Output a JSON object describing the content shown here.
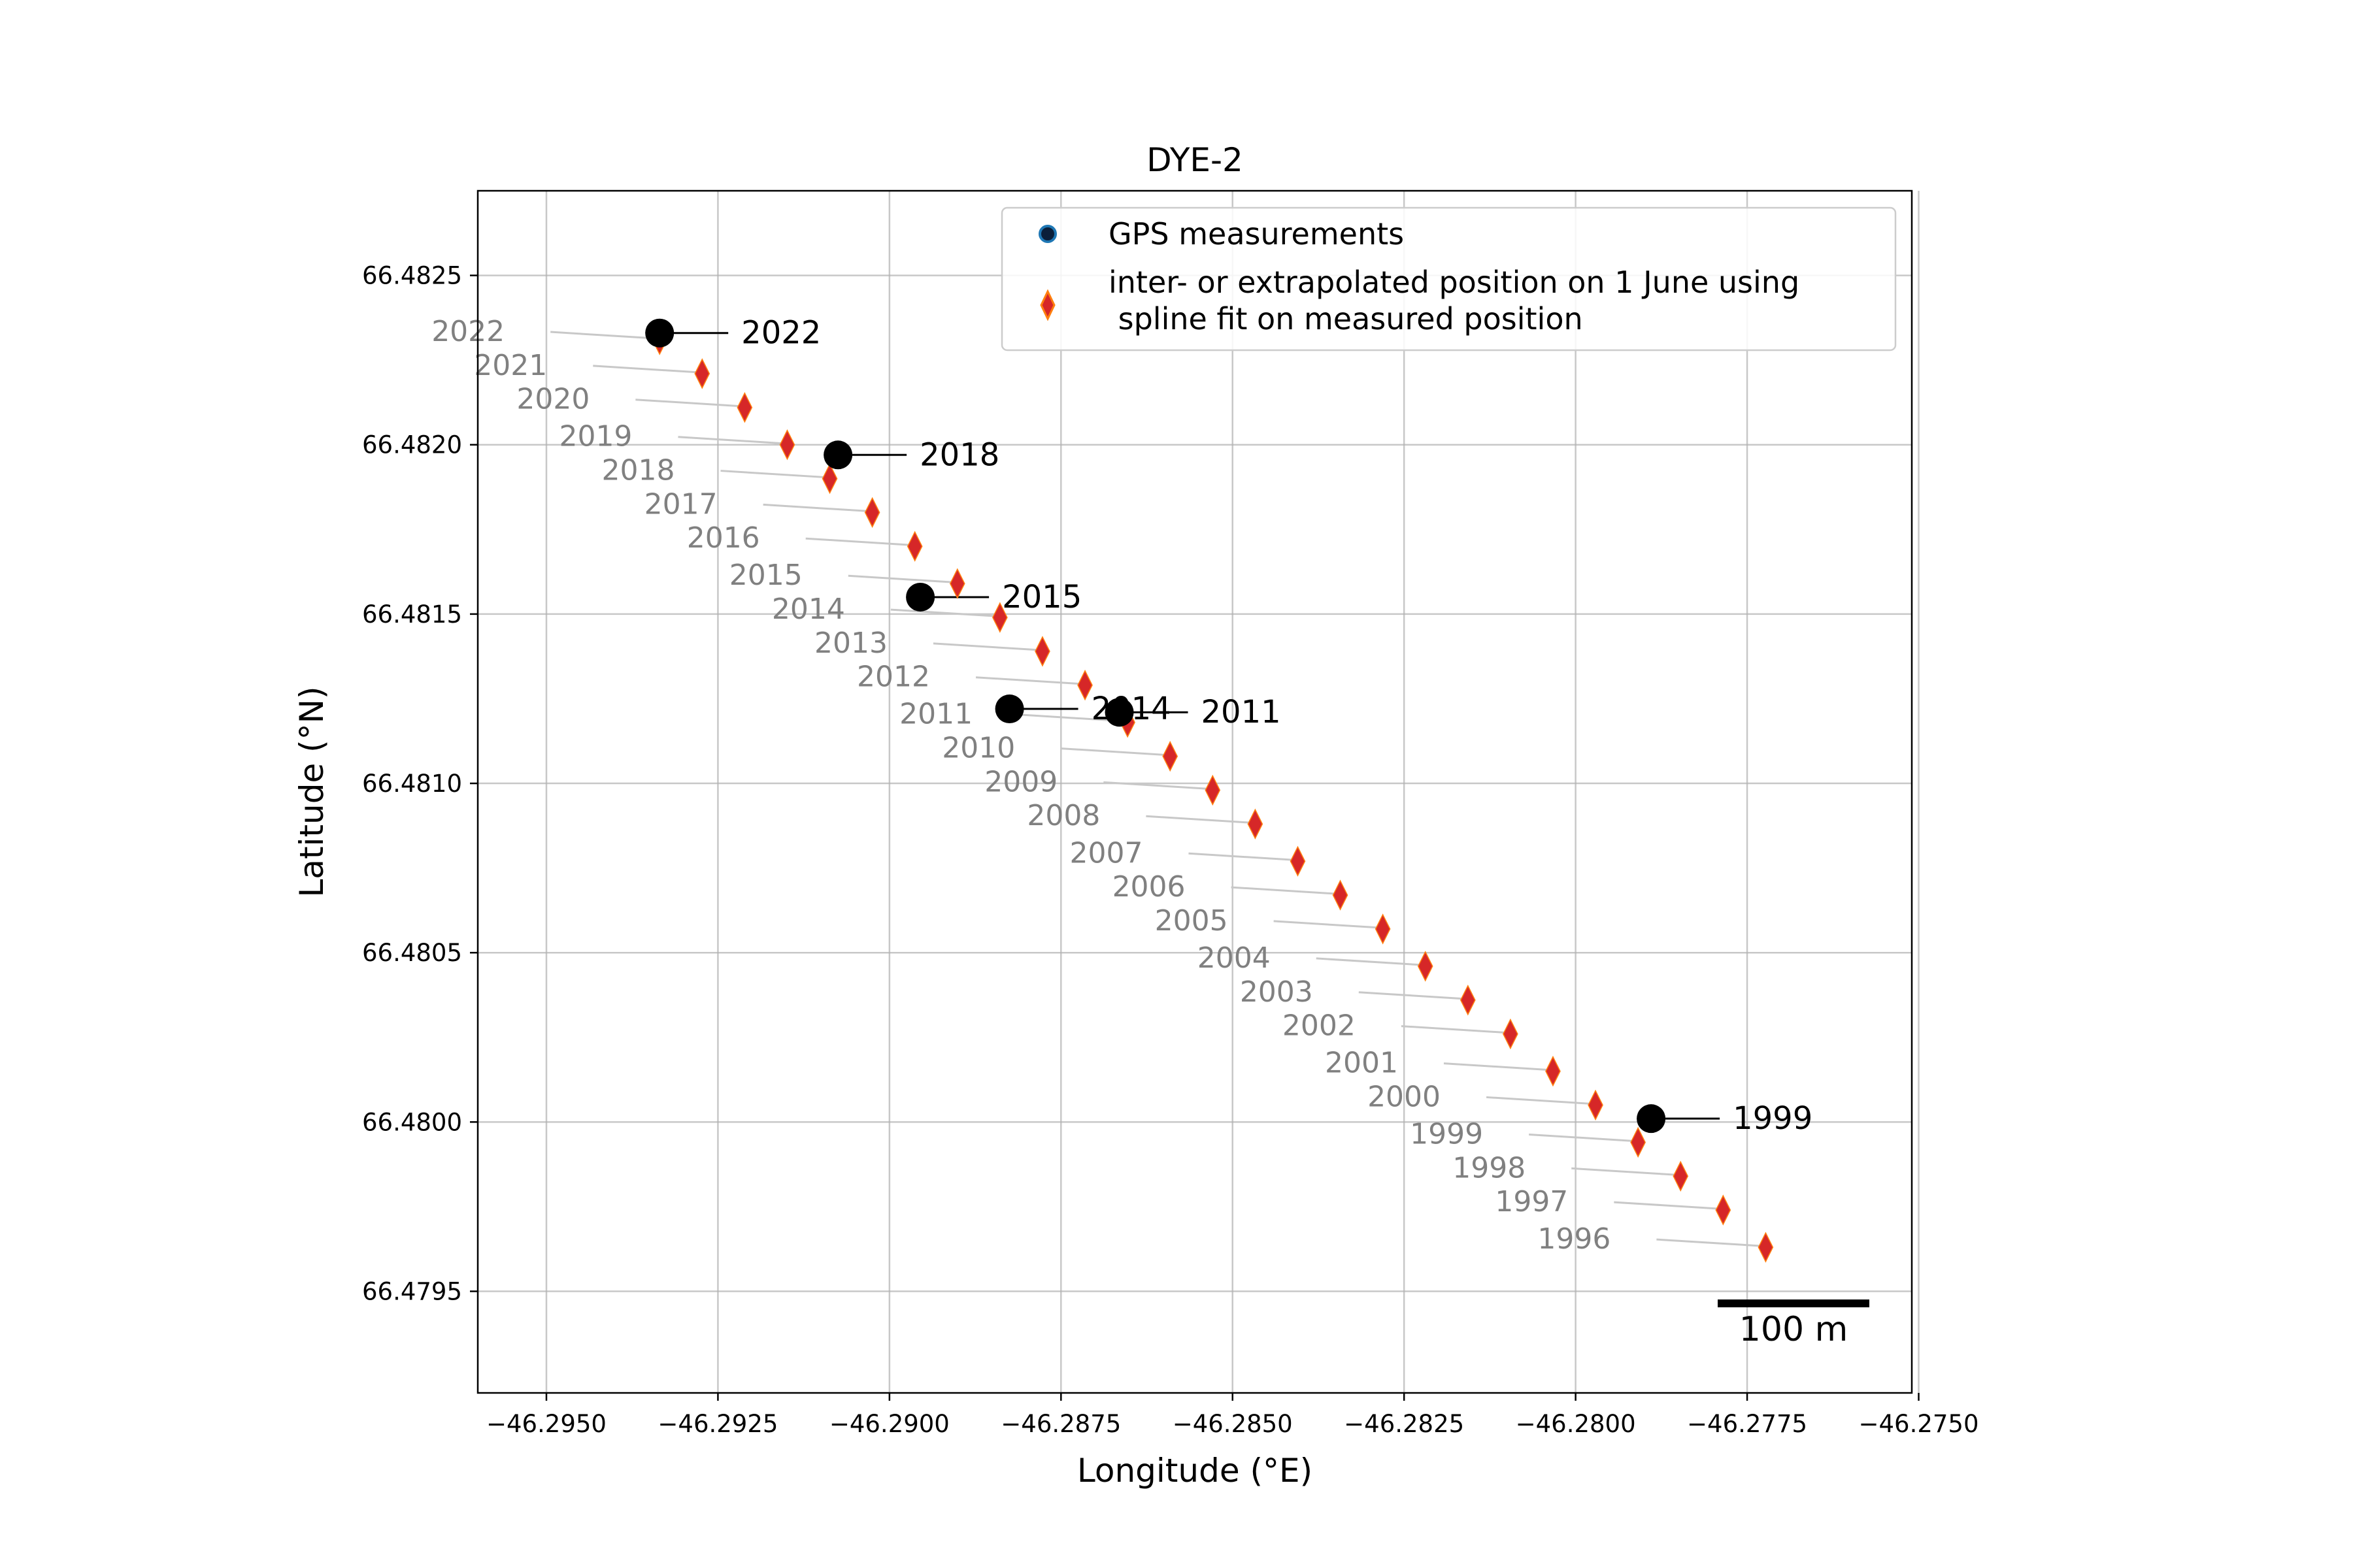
{
  "chart_data": {
    "type": "scatter",
    "title": "DYE-2",
    "xlabel": "Longitude (°E)",
    "ylabel": "Latitude (°N)",
    "xlim": [
      -46.296,
      -46.2751
    ],
    "ylim": [
      66.4792,
      66.48275
    ],
    "xticks": [
      -46.295,
      -46.2925,
      -46.29,
      -46.2875,
      -46.285,
      -46.2825,
      -46.28,
      -46.2775,
      -46.275
    ],
    "xtick_labels": [
      "−46.2950",
      "−46.2925",
      "−46.2900",
      "−46.2875",
      "−46.2850",
      "−46.2825",
      "−46.2800",
      "−46.2775",
      "−46.2750"
    ],
    "yticks": [
      66.4795,
      66.48,
      66.4805,
      66.481,
      66.4815,
      66.482,
      66.4825
    ],
    "ytick_labels": [
      "66.4795",
      "66.4800",
      "66.4805",
      "66.4810",
      "66.4815",
      "66.4820",
      "66.4825"
    ],
    "grid": true,
    "legend_position": "top-right",
    "legend": [
      {
        "label": "GPS measurements",
        "marker": "circle"
      },
      {
        "label": "inter- or extrapolated position on 1 June using",
        "label2": " spline fit on measured position",
        "marker": "diamond"
      }
    ],
    "series": [
      {
        "name": "GPS measurements",
        "points": [
          {
            "year": "2022",
            "lon": -46.29335,
            "lat": 66.48233
          },
          {
            "year": "2018",
            "lon": -46.29075,
            "lat": 66.48197
          },
          {
            "year": "2015",
            "lon": -46.28955,
            "lat": 66.48155
          },
          {
            "year": "2014",
            "lon": -46.28825,
            "lat": 66.48122
          },
          {
            "year": "2011",
            "lon": -46.28665,
            "lat": 66.48121
          },
          {
            "year": "1999",
            "lon": -46.2789,
            "lat": 66.48001
          }
        ]
      },
      {
        "name": "inter- or extrapolated position on 1 June using spline fit on measured position",
        "points": [
          {
            "year": "2022",
            "lon": -46.29335,
            "lat": 66.48231
          },
          {
            "year": "2021",
            "lon": -46.29273,
            "lat": 66.48221
          },
          {
            "year": "2020",
            "lon": -46.29211,
            "lat": 66.48211
          },
          {
            "year": "2019",
            "lon": -46.29149,
            "lat": 66.482
          },
          {
            "year": "2018",
            "lon": -46.29087,
            "lat": 66.4819
          },
          {
            "year": "2017",
            "lon": -46.29025,
            "lat": 66.4818
          },
          {
            "year": "2016",
            "lon": -46.28963,
            "lat": 66.4817
          },
          {
            "year": "2015",
            "lon": -46.28901,
            "lat": 66.48159
          },
          {
            "year": "2014",
            "lon": -46.28839,
            "lat": 66.48149
          },
          {
            "year": "2013",
            "lon": -46.28777,
            "lat": 66.48139
          },
          {
            "year": "2012",
            "lon": -46.28715,
            "lat": 66.48129
          },
          {
            "year": "2011",
            "lon": -46.28653,
            "lat": 66.48118
          },
          {
            "year": "2010",
            "lon": -46.28591,
            "lat": 66.48108
          },
          {
            "year": "2009",
            "lon": -46.28529,
            "lat": 66.48098
          },
          {
            "year": "2008",
            "lon": -46.28467,
            "lat": 66.48088
          },
          {
            "year": "2007",
            "lon": -46.28405,
            "lat": 66.48077
          },
          {
            "year": "2006",
            "lon": -46.28343,
            "lat": 66.48067
          },
          {
            "year": "2005",
            "lon": -46.28281,
            "lat": 66.48057
          },
          {
            "year": "2004",
            "lon": -46.28219,
            "lat": 66.48046
          },
          {
            "year": "2003",
            "lon": -46.28157,
            "lat": 66.48036
          },
          {
            "year": "2002",
            "lon": -46.28095,
            "lat": 66.48026
          },
          {
            "year": "2001",
            "lon": -46.28033,
            "lat": 66.48015
          },
          {
            "year": "2000",
            "lon": -46.27971,
            "lat": 66.48005
          },
          {
            "year": "1999",
            "lon": -46.27909,
            "lat": 66.47994
          },
          {
            "year": "1998",
            "lon": -46.27847,
            "lat": 66.47984
          },
          {
            "year": "1997",
            "lon": -46.27785,
            "lat": 66.47974
          },
          {
            "year": "1996",
            "lon": -46.27723,
            "lat": 66.47963
          }
        ]
      }
    ],
    "scale_bar": {
      "label": "100 m"
    }
  },
  "colors": {
    "gps_marker": "#000000",
    "spline_marker": "#d62728",
    "spline_marker_edge": "#ff7f0e",
    "year_label": "#808080",
    "leader_line_interp": "#c8c8c8",
    "leader_line_gps": "#000000",
    "grid": "#b0b0b0",
    "legend_gps_fill": "#0b1f3a",
    "legend_gps_edge": "#1f77b4"
  }
}
